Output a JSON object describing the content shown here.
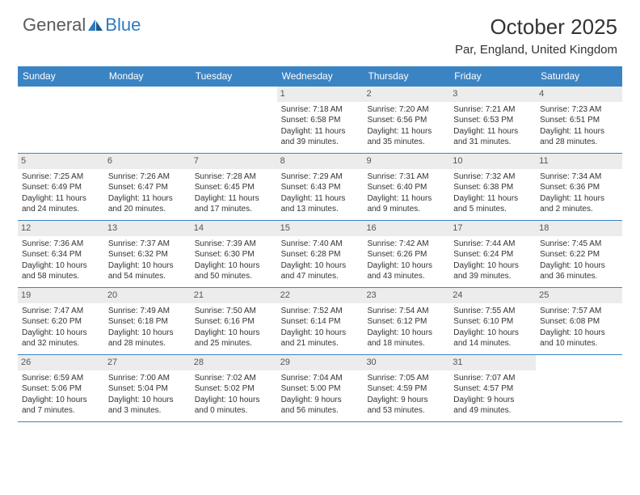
{
  "logo": {
    "text1": "General",
    "text2": "Blue"
  },
  "title": "October 2025",
  "location": "Par, England, United Kingdom",
  "colors": {
    "header_bg": "#3b84c4",
    "header_fg": "#ffffff",
    "daynum_bg": "#ececec",
    "border": "#3b84c4",
    "logo_gray": "#5a5a5a",
    "logo_blue": "#2d7bbf"
  },
  "day_headers": [
    "Sunday",
    "Monday",
    "Tuesday",
    "Wednesday",
    "Thursday",
    "Friday",
    "Saturday"
  ],
  "weeks": [
    [
      {
        "day": "",
        "sunrise": "",
        "sunset": "",
        "daylight1": "",
        "daylight2": ""
      },
      {
        "day": "",
        "sunrise": "",
        "sunset": "",
        "daylight1": "",
        "daylight2": ""
      },
      {
        "day": "",
        "sunrise": "",
        "sunset": "",
        "daylight1": "",
        "daylight2": ""
      },
      {
        "day": "1",
        "sunrise": "Sunrise: 7:18 AM",
        "sunset": "Sunset: 6:58 PM",
        "daylight1": "Daylight: 11 hours",
        "daylight2": "and 39 minutes."
      },
      {
        "day": "2",
        "sunrise": "Sunrise: 7:20 AM",
        "sunset": "Sunset: 6:56 PM",
        "daylight1": "Daylight: 11 hours",
        "daylight2": "and 35 minutes."
      },
      {
        "day": "3",
        "sunrise": "Sunrise: 7:21 AM",
        "sunset": "Sunset: 6:53 PM",
        "daylight1": "Daylight: 11 hours",
        "daylight2": "and 31 minutes."
      },
      {
        "day": "4",
        "sunrise": "Sunrise: 7:23 AM",
        "sunset": "Sunset: 6:51 PM",
        "daylight1": "Daylight: 11 hours",
        "daylight2": "and 28 minutes."
      }
    ],
    [
      {
        "day": "5",
        "sunrise": "Sunrise: 7:25 AM",
        "sunset": "Sunset: 6:49 PM",
        "daylight1": "Daylight: 11 hours",
        "daylight2": "and 24 minutes."
      },
      {
        "day": "6",
        "sunrise": "Sunrise: 7:26 AM",
        "sunset": "Sunset: 6:47 PM",
        "daylight1": "Daylight: 11 hours",
        "daylight2": "and 20 minutes."
      },
      {
        "day": "7",
        "sunrise": "Sunrise: 7:28 AM",
        "sunset": "Sunset: 6:45 PM",
        "daylight1": "Daylight: 11 hours",
        "daylight2": "and 17 minutes."
      },
      {
        "day": "8",
        "sunrise": "Sunrise: 7:29 AM",
        "sunset": "Sunset: 6:43 PM",
        "daylight1": "Daylight: 11 hours",
        "daylight2": "and 13 minutes."
      },
      {
        "day": "9",
        "sunrise": "Sunrise: 7:31 AM",
        "sunset": "Sunset: 6:40 PM",
        "daylight1": "Daylight: 11 hours",
        "daylight2": "and 9 minutes."
      },
      {
        "day": "10",
        "sunrise": "Sunrise: 7:32 AM",
        "sunset": "Sunset: 6:38 PM",
        "daylight1": "Daylight: 11 hours",
        "daylight2": "and 5 minutes."
      },
      {
        "day": "11",
        "sunrise": "Sunrise: 7:34 AM",
        "sunset": "Sunset: 6:36 PM",
        "daylight1": "Daylight: 11 hours",
        "daylight2": "and 2 minutes."
      }
    ],
    [
      {
        "day": "12",
        "sunrise": "Sunrise: 7:36 AM",
        "sunset": "Sunset: 6:34 PM",
        "daylight1": "Daylight: 10 hours",
        "daylight2": "and 58 minutes."
      },
      {
        "day": "13",
        "sunrise": "Sunrise: 7:37 AM",
        "sunset": "Sunset: 6:32 PM",
        "daylight1": "Daylight: 10 hours",
        "daylight2": "and 54 minutes."
      },
      {
        "day": "14",
        "sunrise": "Sunrise: 7:39 AM",
        "sunset": "Sunset: 6:30 PM",
        "daylight1": "Daylight: 10 hours",
        "daylight2": "and 50 minutes."
      },
      {
        "day": "15",
        "sunrise": "Sunrise: 7:40 AM",
        "sunset": "Sunset: 6:28 PM",
        "daylight1": "Daylight: 10 hours",
        "daylight2": "and 47 minutes."
      },
      {
        "day": "16",
        "sunrise": "Sunrise: 7:42 AM",
        "sunset": "Sunset: 6:26 PM",
        "daylight1": "Daylight: 10 hours",
        "daylight2": "and 43 minutes."
      },
      {
        "day": "17",
        "sunrise": "Sunrise: 7:44 AM",
        "sunset": "Sunset: 6:24 PM",
        "daylight1": "Daylight: 10 hours",
        "daylight2": "and 39 minutes."
      },
      {
        "day": "18",
        "sunrise": "Sunrise: 7:45 AM",
        "sunset": "Sunset: 6:22 PM",
        "daylight1": "Daylight: 10 hours",
        "daylight2": "and 36 minutes."
      }
    ],
    [
      {
        "day": "19",
        "sunrise": "Sunrise: 7:47 AM",
        "sunset": "Sunset: 6:20 PM",
        "daylight1": "Daylight: 10 hours",
        "daylight2": "and 32 minutes."
      },
      {
        "day": "20",
        "sunrise": "Sunrise: 7:49 AM",
        "sunset": "Sunset: 6:18 PM",
        "daylight1": "Daylight: 10 hours",
        "daylight2": "and 28 minutes."
      },
      {
        "day": "21",
        "sunrise": "Sunrise: 7:50 AM",
        "sunset": "Sunset: 6:16 PM",
        "daylight1": "Daylight: 10 hours",
        "daylight2": "and 25 minutes."
      },
      {
        "day": "22",
        "sunrise": "Sunrise: 7:52 AM",
        "sunset": "Sunset: 6:14 PM",
        "daylight1": "Daylight: 10 hours",
        "daylight2": "and 21 minutes."
      },
      {
        "day": "23",
        "sunrise": "Sunrise: 7:54 AM",
        "sunset": "Sunset: 6:12 PM",
        "daylight1": "Daylight: 10 hours",
        "daylight2": "and 18 minutes."
      },
      {
        "day": "24",
        "sunrise": "Sunrise: 7:55 AM",
        "sunset": "Sunset: 6:10 PM",
        "daylight1": "Daylight: 10 hours",
        "daylight2": "and 14 minutes."
      },
      {
        "day": "25",
        "sunrise": "Sunrise: 7:57 AM",
        "sunset": "Sunset: 6:08 PM",
        "daylight1": "Daylight: 10 hours",
        "daylight2": "and 10 minutes."
      }
    ],
    [
      {
        "day": "26",
        "sunrise": "Sunrise: 6:59 AM",
        "sunset": "Sunset: 5:06 PM",
        "daylight1": "Daylight: 10 hours",
        "daylight2": "and 7 minutes."
      },
      {
        "day": "27",
        "sunrise": "Sunrise: 7:00 AM",
        "sunset": "Sunset: 5:04 PM",
        "daylight1": "Daylight: 10 hours",
        "daylight2": "and 3 minutes."
      },
      {
        "day": "28",
        "sunrise": "Sunrise: 7:02 AM",
        "sunset": "Sunset: 5:02 PM",
        "daylight1": "Daylight: 10 hours",
        "daylight2": "and 0 minutes."
      },
      {
        "day": "29",
        "sunrise": "Sunrise: 7:04 AM",
        "sunset": "Sunset: 5:00 PM",
        "daylight1": "Daylight: 9 hours",
        "daylight2": "and 56 minutes."
      },
      {
        "day": "30",
        "sunrise": "Sunrise: 7:05 AM",
        "sunset": "Sunset: 4:59 PM",
        "daylight1": "Daylight: 9 hours",
        "daylight2": "and 53 minutes."
      },
      {
        "day": "31",
        "sunrise": "Sunrise: 7:07 AM",
        "sunset": "Sunset: 4:57 PM",
        "daylight1": "Daylight: 9 hours",
        "daylight2": "and 49 minutes."
      },
      {
        "day": "",
        "sunrise": "",
        "sunset": "",
        "daylight1": "",
        "daylight2": ""
      }
    ]
  ]
}
